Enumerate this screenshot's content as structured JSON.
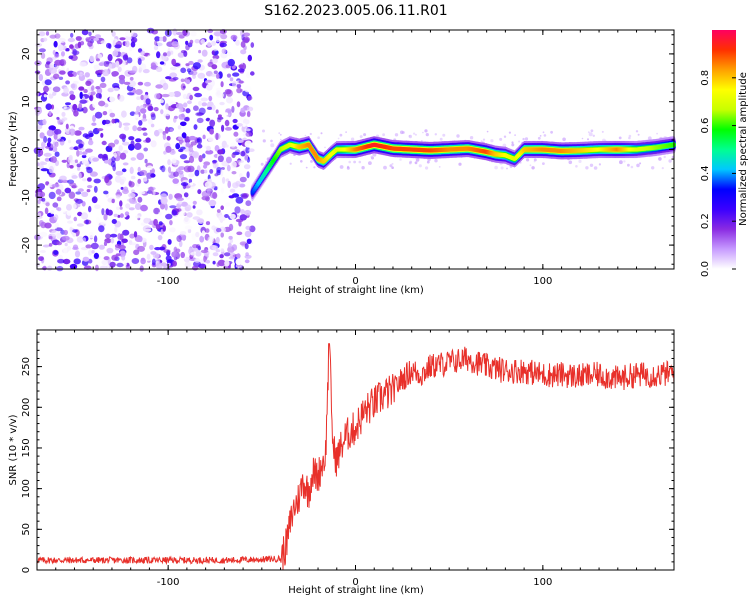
{
  "figure": {
    "title": "S162.2023.005.06.11.R01"
  },
  "chart_data": [
    {
      "type": "heatmap",
      "xlabel": "Height of straight line (km)",
      "ylabel": "Frequency (Hz)",
      "xlim": [
        -170,
        170
      ],
      "ylim": [
        -25,
        25
      ],
      "x_ticks": [
        -100,
        0,
        100
      ],
      "y_ticks": [
        -20,
        -10,
        0,
        10,
        20
      ],
      "grid": false,
      "description_of_values": "Left of about -55 km: scattered low-to-mid amplitude speckle across all frequencies (noise). From about -55 km onward: a narrow high-amplitude ridge near 0 Hz.",
      "noise_region_x": [
        -170,
        -55
      ],
      "ridge": {
        "x": [
          -55,
          -50,
          -45,
          -40,
          -35,
          -30,
          -25,
          -20,
          -17,
          -13,
          -10,
          -5,
          0,
          10,
          20,
          30,
          40,
          50,
          60,
          70,
          75,
          80,
          85,
          90,
          100,
          110,
          120,
          130,
          140,
          150,
          160,
          170
        ],
        "freq_hz": [
          -9,
          -6,
          -3,
          0,
          1,
          0.5,
          1,
          -2,
          -2.5,
          -1,
          0,
          0,
          0,
          1,
          0.2,
          0,
          -0.2,
          0,
          0.2,
          -0.5,
          -1,
          -1.2,
          -2,
          0,
          0,
          -0.3,
          -0.2,
          0,
          0,
          0,
          0.4,
          1
        ],
        "amplitude": [
          0.35,
          0.45,
          0.55,
          0.65,
          0.7,
          0.8,
          0.85,
          0.85,
          0.8,
          0.75,
          0.7,
          0.75,
          0.85,
          0.95,
          0.9,
          0.9,
          0.9,
          0.85,
          0.85,
          0.9,
          0.8,
          0.75,
          0.7,
          0.8,
          0.85,
          0.85,
          0.8,
          0.75,
          0.85,
          0.7,
          0.65,
          0.6
        ]
      },
      "colorbar": {
        "label": "Normalized spectral amplitude",
        "ticks": [
          0.0,
          0.2,
          0.4,
          0.6,
          0.8
        ],
        "range": [
          0,
          1
        ],
        "colors": [
          "#ffffff",
          "#c79bff",
          "#8a2be2",
          "#3a00ff",
          "#0000ff",
          "#00c8ff",
          "#00ff90",
          "#00ff00",
          "#c8ff00",
          "#ffff00",
          "#ffa000",
          "#ff3000",
          "#ff0060"
        ]
      }
    },
    {
      "type": "line",
      "xlabel": "Height of straight line (km)",
      "ylabel": "SNR (10 * v/v)",
      "xlim": [
        -170,
        170
      ],
      "ylim": [
        0,
        295
      ],
      "x_ticks": [
        -100,
        0,
        100
      ],
      "y_ticks": [
        0,
        50,
        100,
        150,
        200,
        250
      ],
      "grid": false,
      "series": [
        {
          "color": "#e8302a",
          "x": [
            -170,
            -150,
            -130,
            -110,
            -90,
            -70,
            -50,
            -40,
            -37,
            -35,
            -33,
            -30,
            -28,
            -25,
            -23,
            -20,
            -18,
            -16,
            -14,
            -12,
            -10,
            -8,
            -5,
            0,
            5,
            10,
            15,
            20,
            25,
            30,
            35,
            40,
            50,
            60,
            70,
            80,
            90,
            100,
            110,
            120,
            130,
            140,
            150,
            160,
            170
          ],
          "y": [
            12,
            12,
            12,
            12,
            12,
            12,
            13,
            14,
            30,
            55,
            75,
            90,
            110,
            95,
            120,
            115,
            130,
            140,
            280,
            150,
            135,
            150,
            165,
            175,
            195,
            205,
            215,
            220,
            235,
            245,
            240,
            250,
            255,
            260,
            250,
            245,
            245,
            240,
            240,
            238,
            240,
            235,
            240,
            240,
            242
          ]
        }
      ]
    }
  ]
}
